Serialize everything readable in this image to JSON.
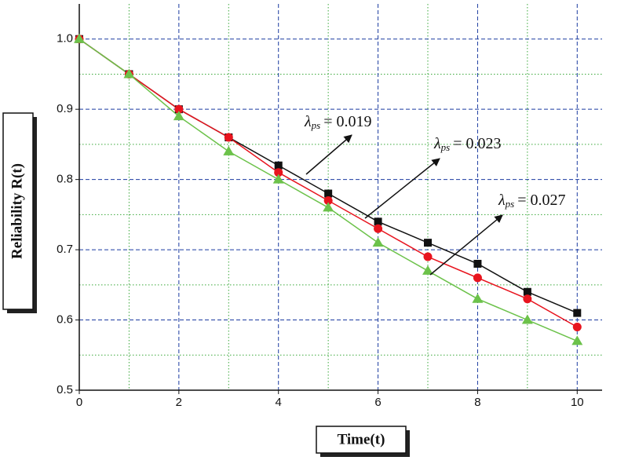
{
  "chart_data": {
    "type": "line",
    "x_label": "Time(t)",
    "y_label": "Reliability R(t)",
    "x": [
      0,
      1,
      2,
      3,
      4,
      5,
      6,
      7,
      8,
      9,
      10
    ],
    "series": [
      {
        "color": "#111111",
        "marker": "square",
        "values": [
          1.0,
          0.95,
          0.9,
          0.86,
          0.82,
          0.78,
          0.74,
          0.71,
          0.68,
          0.64,
          0.61
        ]
      },
      {
        "color": "#e8141e",
        "marker": "circle",
        "values": [
          1.0,
          0.95,
          0.9,
          0.86,
          0.81,
          0.77,
          0.73,
          0.69,
          0.66,
          0.63,
          0.59
        ]
      },
      {
        "color": "#6cc24a",
        "marker": "triangle",
        "values": [
          1.0,
          0.95,
          0.89,
          0.84,
          0.8,
          0.76,
          0.71,
          0.67,
          0.63,
          0.6,
          0.57
        ]
      }
    ],
    "annotations": [
      {
        "symbol": "λ",
        "sub": "ps",
        "text": "= 0.019"
      },
      {
        "symbol": "λ",
        "sub": "ps",
        "text": "= 0.023"
      },
      {
        "symbol": "λ",
        "sub": "ps",
        "text": "= 0.027"
      }
    ],
    "xlim": [
      0,
      10.5
    ],
    "ylim": [
      0.5,
      1.05
    ],
    "xticks": [
      0,
      2,
      4,
      6,
      8,
      10
    ],
    "yticks": [
      0.5,
      0.6,
      0.7,
      0.8,
      0.9,
      {
        "value": 1.0,
        "label": "1.0"
      }
    ],
    "xminorticks": [
      1,
      3,
      5,
      7,
      9
    ],
    "yminorticks": [
      0.55,
      0.65,
      0.75,
      0.85,
      0.95
    ],
    "grid": true
  }
}
